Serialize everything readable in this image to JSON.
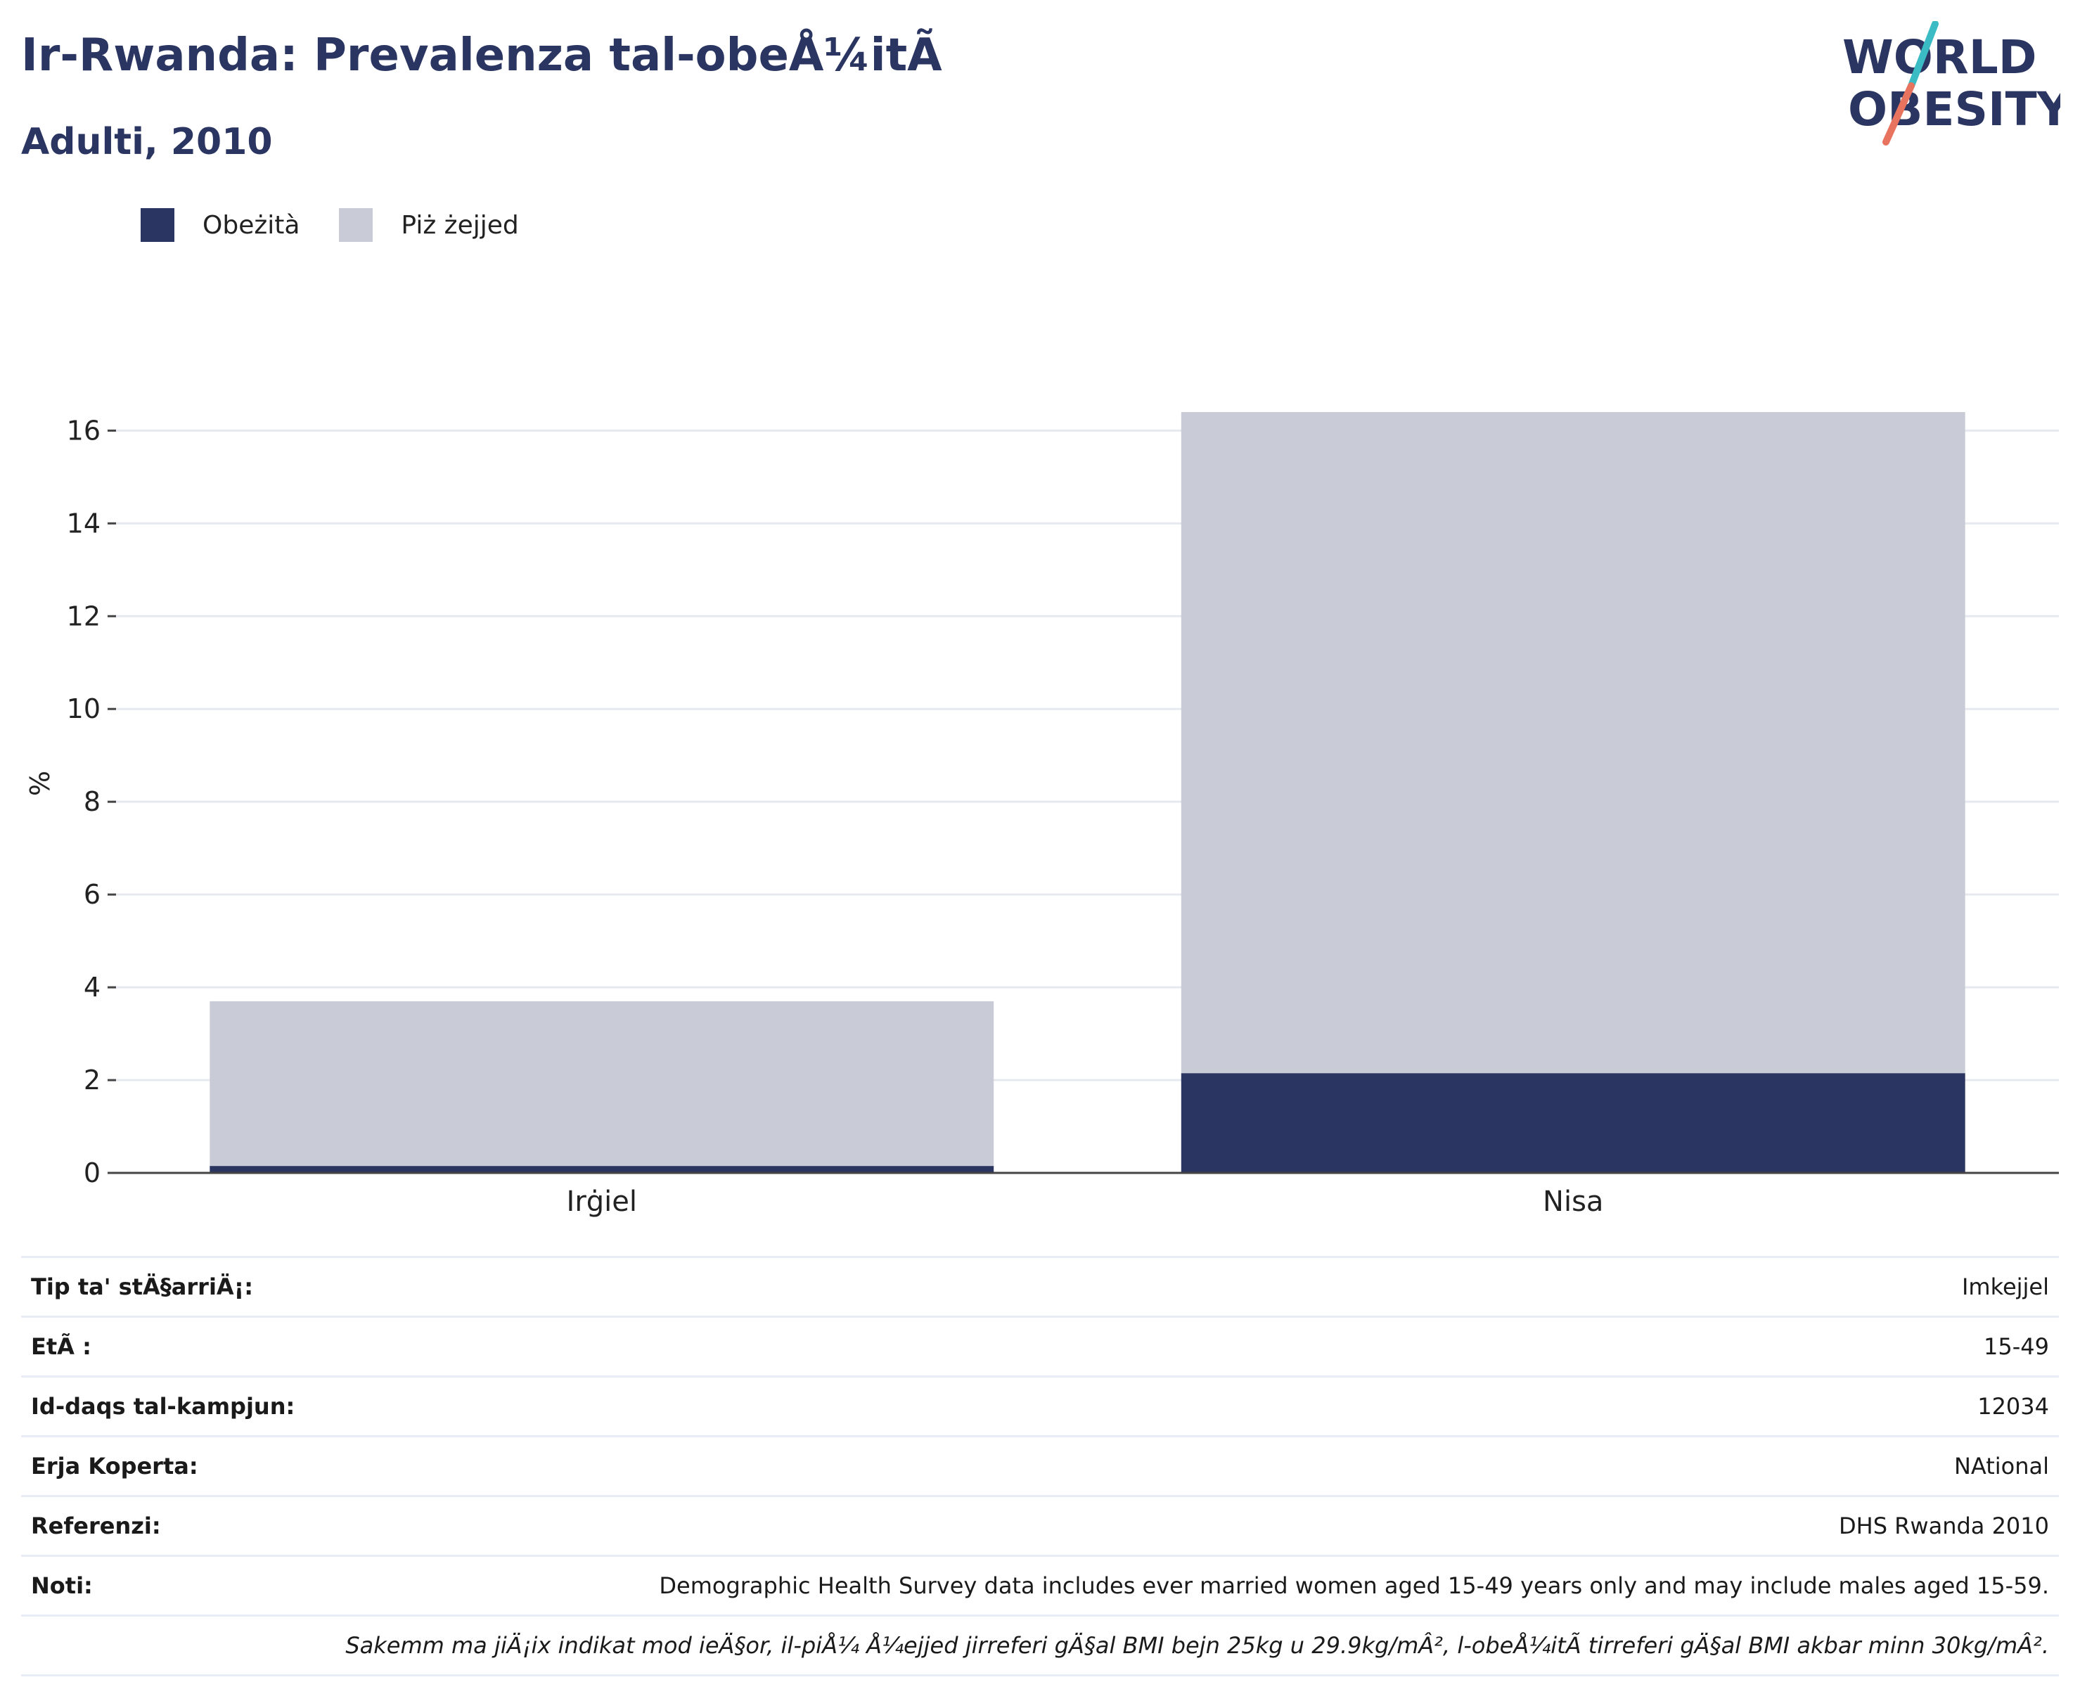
{
  "header": {
    "title": "Ir-Rwanda: Prevalenza tal-obeÅ¼itÃ",
    "subtitle": "Adulti, 2010"
  },
  "logo": {
    "line1": "WORLD",
    "line2": "OBESITY"
  },
  "colors": {
    "obesity": "#2b3561",
    "overweight": "#c9cbd7",
    "text_primary": "#2b3561"
  },
  "legend": [
    {
      "label": "Obeżità",
      "color": "#2b3561"
    },
    {
      "label": "Piż żejjed",
      "color": "#c9cbd7"
    }
  ],
  "chart_data": {
    "type": "bar",
    "stacked": true,
    "categories": [
      "Irġiel",
      "Nisa"
    ],
    "series": [
      {
        "name": "Obeżità",
        "values": [
          0.15,
          2.15
        ],
        "color": "#2b3561"
      },
      {
        "name": "Piż żejjed",
        "values": [
          3.55,
          14.25
        ],
        "color": "#c9cbd7"
      }
    ],
    "ylabel": "%",
    "yticks": [
      "0",
      "2",
      "4",
      "6",
      "8",
      "10",
      "12",
      "14",
      "16"
    ],
    "ylim": [
      0,
      17.4
    ],
    "grid": true,
    "legend_position": "top-left"
  },
  "info": {
    "rows": [
      {
        "label": "Tip ta' stÄ§arriÄ¡:",
        "value": "Imkejjel"
      },
      {
        "label": "EtÃ :",
        "value": "15-49"
      },
      {
        "label": "Id-daqs tal-kampjun:",
        "value": "12034"
      },
      {
        "label": "Erja Koperta:",
        "value": "NAtional"
      },
      {
        "label": "Referenzi:",
        "value": "DHS Rwanda 2010"
      },
      {
        "label": "Noti:",
        "value": "Demographic Health Survey data includes ever married women aged 15-49 years only and may include males aged 15-59."
      }
    ],
    "footnote": "Sakemm ma jiÄ¡ix indikat mod ieÄ§or, il-piÅ¼ Å¼ejjed jirreferi gÄ§al BMI bejn 25kg u 29.9kg/mÂ², l-obeÅ¼itÃ  tirreferi gÄ§al BMI akbar minn 30kg/mÂ²."
  }
}
